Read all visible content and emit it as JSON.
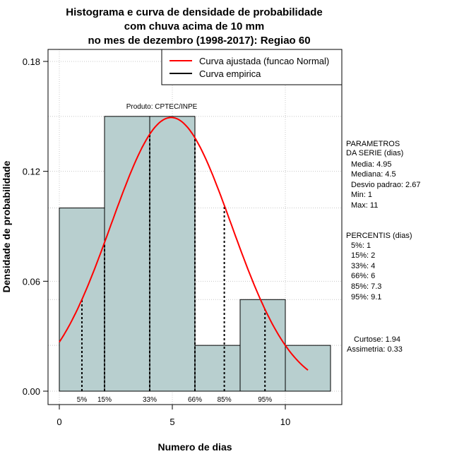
{
  "chart_data": {
    "type": "bar",
    "title_lines": [
      "Histograma e curva de densidade de probabilidade",
      "com chuva acima de 10 mm",
      "no mes de dezembro (1998-2017): Regiao 60"
    ],
    "xlabel": "Numero de dias",
    "ylabel": "Densidade de probabilidade",
    "xlim": [
      -1,
      13
    ],
    "ylim": [
      0,
      0.18
    ],
    "x_ticks": [
      0,
      5,
      10
    ],
    "y_ticks": [
      0.0,
      0.06,
      0.12,
      0.18
    ],
    "y_tick_labels": [
      "0.00",
      "0.06",
      "0.12",
      "0.18"
    ],
    "bins": [
      {
        "start": 0,
        "end": 2,
        "density": 0.1
      },
      {
        "start": 2,
        "end": 4,
        "density": 0.15
      },
      {
        "start": 4,
        "end": 6,
        "density": 0.15
      },
      {
        "start": 6,
        "end": 8,
        "density": 0.025
      },
      {
        "start": 8,
        "end": 10,
        "density": 0.05
      },
      {
        "start": 10,
        "end": 12,
        "density": 0.025
      }
    ],
    "normal_fit": {
      "mean": 4.95,
      "sd": 2.67,
      "x_from": 0,
      "x_to": 11
    },
    "percentile_lines": [
      {
        "label": "5%",
        "x": 1
      },
      {
        "label": "15%",
        "x": 2
      },
      {
        "label": "33%",
        "x": 4
      },
      {
        "label": "66%",
        "x": 6
      },
      {
        "label": "85%",
        "x": 7.3
      },
      {
        "label": "95%",
        "x": 9.1
      }
    ],
    "legend": [
      {
        "label": "Curva ajustada (funcao Normal)",
        "color": "#ff0000"
      },
      {
        "label": "Curva empirica",
        "color": "#000000"
      }
    ],
    "annotation": "Produto: CPTEC/INPE",
    "bar_color": "#b8cfcf",
    "curve_color": "#ff0000"
  },
  "side_panel": {
    "parametros": [
      "PARAMETROS",
      "DA SERIE (dias)",
      "Media: 4.95",
      "Mediana: 4.5",
      "Desvio padrao: 2.67",
      "Min: 1",
      "Max: 11"
    ],
    "percentis": [
      "PERCENTIS (dias)",
      "5%: 1",
      "15%: 2",
      "33%: 4",
      "66%: 6",
      "85%: 7.3",
      "95%: 9.1"
    ],
    "curtose": "Curtose: 1.94",
    "assimetria": "Assimetria: 0.33"
  }
}
